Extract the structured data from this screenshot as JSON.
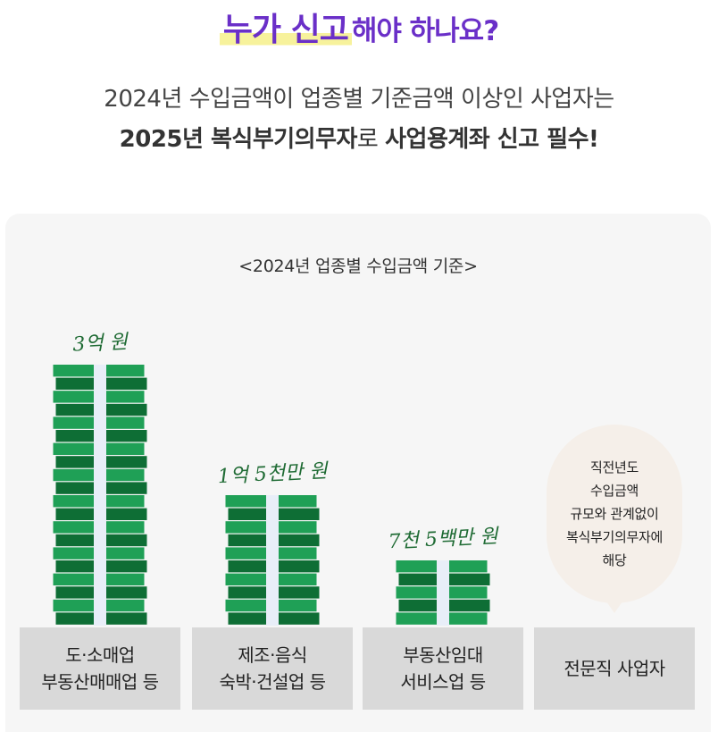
{
  "headline": {
    "highlight": "누가 신고",
    "rest": "해야 하나요?"
  },
  "subtitle": {
    "line1": "2024년 수입금액이 업종별 기준금액 이상인 사업자는",
    "line2_bold_1": "2025년 복식부기의무자",
    "line2_normal_1": "로 ",
    "line2_bold_2": "사업용계좌 신고 필수!"
  },
  "chart_data": {
    "type": "bar",
    "title": "<2024년 업종별 수입금액 기준>",
    "categories": [
      [
        "도·소매업",
        "부동산매매업 등"
      ],
      [
        "제조·음식",
        "숙박·건설업 등"
      ],
      [
        "부동산임대",
        "서비스업 등"
      ],
      [
        "전문직 사업자"
      ]
    ],
    "values": [
      30000,
      15000,
      7500,
      null
    ],
    "value_labels": [
      "3억 원",
      "1억 5천만 원",
      "7천 5백만 원",
      ""
    ],
    "unit": "만 원",
    "last_category_note": [
      "직전년도",
      "수입금액",
      "규모와 관계없이",
      "복식부기의무자에",
      "해당"
    ],
    "colors": {
      "bill_light": "#1fa056",
      "bill_dark": "#0e6e35",
      "band": "#e8eef8",
      "label": "#1f6b34"
    }
  }
}
